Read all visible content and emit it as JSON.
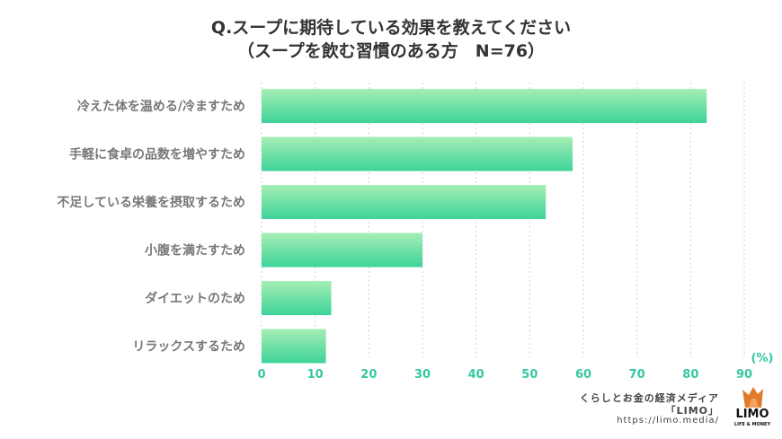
{
  "title_line1": "Q.スープに期待している効果を教えてください",
  "title_line2": "（スープを飲む習慣のある方　N=76）",
  "chart_data": {
    "type": "bar",
    "orientation": "horizontal",
    "categories": [
      "冷えた体を温める/冷ますため",
      "手軽に食卓の品数を増やすため",
      "不足している栄養を摂取するため",
      "小腹を満たすため",
      "ダイエットのため",
      "リラックスするため"
    ],
    "values": [
      83,
      58,
      53,
      30,
      13,
      12
    ],
    "xlim": [
      0,
      90
    ],
    "xticks": [
      0,
      10,
      20,
      30,
      40,
      50,
      60,
      70,
      80,
      90
    ],
    "unit": "(%)",
    "grid": true,
    "bar_color_top": "#a6eeb4",
    "bar_color_bottom": "#3dd39a",
    "tick_color": "#36c7a2"
  },
  "credit": {
    "line1": "くらしとお金の経済メディア",
    "line2": "「LIMO」",
    "line3": "https://limo.media/"
  },
  "logo": {
    "word": "LIMO",
    "sub": "LIFE & MONEY",
    "icon": "fox-head-icon",
    "color": "#e2792b"
  }
}
